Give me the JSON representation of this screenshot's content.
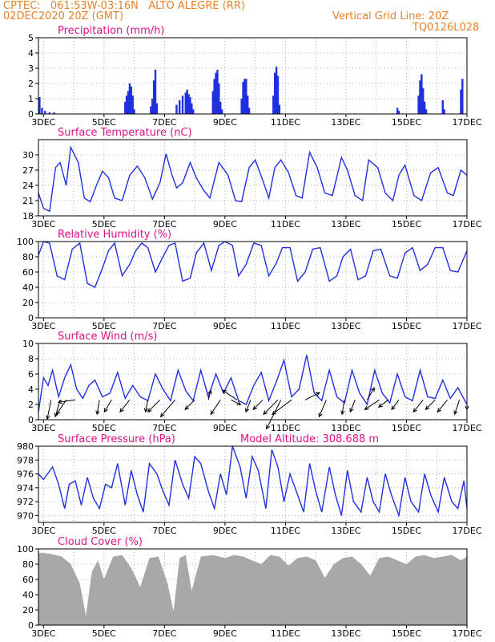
{
  "header": {
    "line1_left": "CPTEC:   061:53W-03:16N   ALTO ALEGRE (RR)",
    "line2_left": "02DEC2020 20Z (GMT)",
    "line1_right": "Vertical Grid Line: 20Z",
    "line2_right": "TQ0126L028"
  },
  "colors": {
    "header": "#e8822a",
    "title": "#e0108a",
    "series": "#2030e0",
    "cloud": "#a8a8a8",
    "arrow": "#000000"
  },
  "x_tick_labels": [
    "3DEC",
    "5DEC",
    "7DEC",
    "9DEC",
    "11DEC",
    "13DEC",
    "15DEC",
    "17DEC"
  ],
  "chart_data": [
    {
      "type": "bar",
      "title": "Precipitation (mm/h)",
      "ylim": [
        0,
        5
      ],
      "yticks": [
        0,
        1,
        2,
        3,
        4,
        5
      ],
      "x_range_days": [
        2.833,
        17.0
      ],
      "series": [
        {
          "x": [
            2.87,
            2.95,
            3.05,
            3.2,
            3.35,
            5.7,
            5.75,
            5.8,
            5.85,
            5.9,
            5.95,
            6.0,
            6.55,
            6.6,
            6.65,
            6.7,
            6.75,
            7.4,
            7.5,
            7.6,
            7.7,
            7.75,
            7.8,
            7.85,
            7.9,
            7.95,
            8.6,
            8.65,
            8.7,
            8.75,
            8.8,
            8.85,
            8.9,
            9.55,
            9.6,
            9.65,
            9.7,
            9.75,
            9.8,
            10.6,
            10.65,
            10.7,
            10.75,
            10.8,
            14.7,
            14.75,
            15.4,
            15.45,
            15.5,
            15.55,
            15.6,
            15.65,
            16.2,
            16.25,
            16.8,
            16.85
          ],
          "values": [
            1.1,
            0.4,
            0.2,
            0.1,
            0.1,
            0.8,
            1.2,
            1.5,
            2.0,
            1.8,
            1.2,
            0.3,
            0.5,
            1.0,
            2.2,
            2.9,
            0.7,
            0.6,
            0.9,
            1.2,
            1.4,
            1.6,
            1.3,
            1.1,
            0.7,
            0.3,
            1.5,
            2.3,
            2.7,
            2.9,
            2.0,
            0.8,
            0.3,
            1.0,
            2.1,
            2.3,
            2.3,
            1.2,
            0.4,
            1.2,
            2.7,
            3.1,
            2.5,
            0.6,
            0.4,
            0.2,
            1.2,
            2.2,
            2.6,
            1.7,
            0.8,
            0.3,
            0.9,
            0.3,
            1.6,
            2.3
          ]
        }
      ]
    },
    {
      "type": "line",
      "title": "Surface Temperature (nC)",
      "ylim": [
        18,
        33
      ],
      "yticks": [
        18,
        21,
        24,
        27,
        30
      ],
      "x_range_days": [
        2.833,
        17.0
      ],
      "series": [
        {
          "x": [
            2.833,
            3.0,
            3.2,
            3.4,
            3.55,
            3.75,
            3.9,
            4.15,
            4.35,
            4.55,
            4.75,
            4.95,
            5.15,
            5.35,
            5.6,
            5.85,
            6.1,
            6.35,
            6.6,
            6.85,
            7.05,
            7.25,
            7.4,
            7.6,
            7.85,
            8.05,
            8.3,
            8.5,
            8.8,
            9.1,
            9.35,
            9.55,
            9.8,
            10.0,
            10.25,
            10.45,
            10.65,
            10.85,
            11.1,
            11.35,
            11.55,
            11.8,
            12.05,
            12.3,
            12.55,
            12.85,
            13.05,
            13.3,
            13.55,
            13.75,
            14.05,
            14.3,
            14.55,
            14.75,
            14.95,
            15.25,
            15.5,
            15.8,
            16.05,
            16.35,
            16.55,
            16.8,
            17.0
          ],
          "values": [
            22.5,
            19.5,
            18.9,
            27.5,
            28.5,
            24.0,
            31.5,
            28.5,
            21.5,
            20.8,
            24.0,
            26.8,
            25.5,
            21.5,
            21.0,
            26.0,
            27.8,
            25.5,
            21.3,
            24.5,
            30.2,
            26.0,
            23.5,
            24.5,
            28.5,
            25.5,
            23.0,
            21.5,
            28.5,
            26.0,
            21.0,
            20.8,
            27.5,
            29.0,
            25.0,
            21.5,
            27.5,
            29.0,
            26.5,
            22.0,
            21.5,
            30.5,
            27.5,
            22.5,
            22.0,
            29.5,
            27.0,
            22.0,
            21.0,
            29.0,
            27.5,
            22.5,
            21.0,
            26.0,
            28.0,
            22.0,
            21.0,
            26.5,
            27.5,
            22.5,
            22.0,
            27.0,
            26.0
          ]
        }
      ]
    },
    {
      "type": "line",
      "title": "Relative Humidity (%)",
      "ylim": [
        0,
        100
      ],
      "yticks": [
        0,
        20,
        40,
        60,
        80,
        100
      ],
      "x_range_days": [
        2.833,
        17.0
      ],
      "series": [
        {
          "x": [
            2.833,
            3.0,
            3.2,
            3.45,
            3.7,
            3.95,
            4.2,
            4.45,
            4.7,
            4.95,
            5.15,
            5.35,
            5.6,
            5.85,
            6.05,
            6.25,
            6.45,
            6.7,
            6.95,
            7.15,
            7.35,
            7.6,
            7.85,
            8.05,
            8.3,
            8.55,
            8.8,
            9.0,
            9.25,
            9.45,
            9.7,
            9.95,
            10.2,
            10.45,
            10.7,
            10.9,
            11.15,
            11.4,
            11.65,
            11.9,
            12.15,
            12.45,
            12.7,
            12.9,
            13.15,
            13.4,
            13.65,
            13.9,
            14.15,
            14.45,
            14.7,
            14.95,
            15.2,
            15.45,
            15.7,
            15.95,
            16.2,
            16.45,
            16.7,
            17.0
          ],
          "values": [
            82,
            100,
            98,
            55,
            50,
            90,
            98,
            45,
            40,
            65,
            88,
            98,
            55,
            70,
            88,
            98,
            92,
            60,
            80,
            95,
            98,
            48,
            52,
            85,
            98,
            62,
            95,
            100,
            95,
            55,
            70,
            98,
            95,
            55,
            72,
            92,
            92,
            48,
            60,
            90,
            92,
            48,
            55,
            80,
            90,
            50,
            55,
            88,
            90,
            55,
            52,
            85,
            92,
            62,
            70,
            92,
            92,
            62,
            60,
            88
          ]
        }
      ]
    },
    {
      "type": "line",
      "title": "Surface Wind (m/s)",
      "ylim": [
        0,
        10
      ],
      "yticks": [
        0,
        2,
        4,
        6,
        8,
        10
      ],
      "x_range_days": [
        2.833,
        17.0
      ],
      "series": [
        {
          "x": [
            2.833,
            3.0,
            3.15,
            3.3,
            3.5,
            3.7,
            3.9,
            4.1,
            4.3,
            4.5,
            4.7,
            4.95,
            5.2,
            5.45,
            5.7,
            5.95,
            6.2,
            6.45,
            6.7,
            6.95,
            7.2,
            7.45,
            7.7,
            7.95,
            8.2,
            8.45,
            8.7,
            8.95,
            9.2,
            9.45,
            9.7,
            9.95,
            10.2,
            10.45,
            10.7,
            10.95,
            11.2,
            11.45,
            11.7,
            11.95,
            12.2,
            12.45,
            12.7,
            12.95,
            13.2,
            13.45,
            13.7,
            13.95,
            14.2,
            14.45,
            14.7,
            14.95,
            15.2,
            15.45,
            15.7,
            15.95,
            16.2,
            16.45,
            16.7,
            17.0
          ],
          "values": [
            1.0,
            5.5,
            4.5,
            6.5,
            3.0,
            5.5,
            7.2,
            4.0,
            2.8,
            4.5,
            5.2,
            3.0,
            3.5,
            6.2,
            2.8,
            4.5,
            3.0,
            2.5,
            6.0,
            4.0,
            2.5,
            6.5,
            3.8,
            2.5,
            6.5,
            3.0,
            6.0,
            3.5,
            5.5,
            2.5,
            2.0,
            4.5,
            6.2,
            2.5,
            5.0,
            7.8,
            3.0,
            4.0,
            8.5,
            3.5,
            2.5,
            6.5,
            3.0,
            2.2,
            6.5,
            3.5,
            2.0,
            6.5,
            3.5,
            2.2,
            6.0,
            3.0,
            2.5,
            6.5,
            3.0,
            2.8,
            5.2,
            2.8,
            4.2,
            2.0
          ]
        }
      ],
      "wind_vectors": [
        {
          "x": 3.25,
          "u": -0.8,
          "v": -4
        },
        {
          "x": 3.55,
          "u": -1.0,
          "v": -3.5
        },
        {
          "x": 3.75,
          "u": -2,
          "v": -3
        },
        {
          "x": 4.05,
          "u": -3.5,
          "v": -0.5
        },
        {
          "x": 4.85,
          "u": -0.5,
          "v": -3
        },
        {
          "x": 5.25,
          "u": -1.5,
          "v": -2.5
        },
        {
          "x": 5.85,
          "u": -2,
          "v": -2.5
        },
        {
          "x": 6.45,
          "u": -0.5,
          "v": -2.5
        },
        {
          "x": 6.85,
          "u": -2.5,
          "v": -2.5
        },
        {
          "x": 7.35,
          "u": -3,
          "v": -3.5
        },
        {
          "x": 8.0,
          "u": -2,
          "v": -2
        },
        {
          "x": 8.45,
          "u": 0.5,
          "v": 2
        },
        {
          "x": 8.85,
          "u": -2,
          "v": -3
        },
        {
          "x": 9.2,
          "u": 2,
          "v": -1
        },
        {
          "x": 9.4,
          "u": -3,
          "v": 2
        },
        {
          "x": 9.85,
          "u": -1,
          "v": -2.5
        },
        {
          "x": 10.25,
          "u": -2,
          "v": -2
        },
        {
          "x": 10.75,
          "u": -3,
          "v": -3
        },
        {
          "x": 10.85,
          "u": -3,
          "v": -6
        },
        {
          "x": 11.2,
          "u": -4,
          "v": -3
        },
        {
          "x": 11.65,
          "u": 3,
          "v": 1.5
        },
        {
          "x": 12.35,
          "u": -1.5,
          "v": -3.5
        },
        {
          "x": 12.95,
          "u": -0.5,
          "v": -3
        },
        {
          "x": 13.3,
          "u": -1,
          "v": -2.5
        },
        {
          "x": 13.7,
          "u": 1.5,
          "v": 2.5
        },
        {
          "x": 14.1,
          "u": -3,
          "v": -2
        },
        {
          "x": 14.4,
          "u": -2,
          "v": -1.5
        },
        {
          "x": 14.75,
          "u": -1.5,
          "v": -2
        },
        {
          "x": 15.55,
          "u": -2,
          "v": -2.5
        },
        {
          "x": 15.95,
          "u": -2,
          "v": -2
        },
        {
          "x": 16.35,
          "u": -2,
          "v": -2.5
        },
        {
          "x": 16.75,
          "u": -1,
          "v": -3
        },
        {
          "x": 17.0,
          "u": 0,
          "v": -2
        }
      ]
    },
    {
      "type": "line",
      "title": "Surface Pressure (hPa)",
      "annotation": "Model Altitude: 308.688 m",
      "ylim": [
        969,
        980
      ],
      "yticks": [
        970,
        972,
        974,
        976,
        978,
        980
      ],
      "x_range_days": [
        2.833,
        17.0
      ],
      "series": [
        {
          "x": [
            2.833,
            3.0,
            3.3,
            3.5,
            3.7,
            3.85,
            4.05,
            4.25,
            4.45,
            4.65,
            4.85,
            5.05,
            5.25,
            5.45,
            5.7,
            5.9,
            6.1,
            6.3,
            6.5,
            6.75,
            6.95,
            7.15,
            7.35,
            7.6,
            7.8,
            8.0,
            8.2,
            8.45,
            8.65,
            8.85,
            9.05,
            9.25,
            9.5,
            9.7,
            9.9,
            10.1,
            10.35,
            10.55,
            10.75,
            10.95,
            11.15,
            11.4,
            11.6,
            11.8,
            12.0,
            12.2,
            12.45,
            12.65,
            12.85,
            13.05,
            13.25,
            13.5,
            13.7,
            13.9,
            14.1,
            14.3,
            14.5,
            14.75,
            14.95,
            15.15,
            15.4,
            15.6,
            15.8,
            16.05,
            16.25,
            16.5,
            16.7,
            16.9,
            17.0
          ],
          "values": [
            976,
            975.2,
            977.0,
            974.5,
            971.0,
            974.5,
            975.0,
            971.5,
            975.5,
            972.5,
            971.0,
            974.5,
            974.0,
            977.5,
            971.5,
            976.5,
            973.0,
            970.5,
            977.5,
            976.0,
            973.5,
            971.5,
            978.0,
            974.5,
            972.5,
            978.5,
            977.5,
            973.5,
            971.0,
            976.0,
            973.0,
            980.0,
            977.0,
            972.5,
            978.5,
            976.5,
            971.0,
            979.5,
            977.0,
            972.0,
            976.0,
            973.0,
            970.5,
            977.5,
            973.5,
            970.5,
            977.0,
            973.0,
            970.0,
            976.5,
            972.0,
            970.5,
            975.5,
            972.0,
            970.5,
            976.0,
            973.0,
            970.0,
            975.5,
            972.0,
            970.5,
            976.0,
            973.0,
            970.5,
            975.5,
            972.0,
            971.0,
            975.0,
            971.0
          ]
        }
      ]
    },
    {
      "type": "area",
      "title": "Cloud Cover (%)",
      "ylim": [
        0,
        100
      ],
      "yticks": [
        0,
        20,
        40,
        60,
        80,
        100
      ],
      "x_range_days": [
        2.833,
        17.0
      ],
      "series": [
        {
          "x": [
            2.833,
            3.2,
            3.6,
            3.9,
            4.2,
            4.4,
            4.6,
            4.8,
            5.0,
            5.3,
            5.6,
            5.9,
            6.2,
            6.5,
            6.8,
            7.1,
            7.3,
            7.5,
            7.7,
            7.9,
            8.2,
            8.6,
            9.0,
            9.3,
            9.6,
            9.9,
            10.2,
            10.5,
            10.8,
            11.1,
            11.4,
            11.7,
            12.0,
            12.3,
            12.6,
            12.9,
            13.2,
            13.5,
            13.8,
            14.1,
            14.4,
            14.7,
            15.0,
            15.3,
            15.6,
            15.9,
            16.2,
            16.5,
            16.8,
            17.0
          ],
          "values": [
            95,
            94,
            90,
            80,
            55,
            12,
            70,
            85,
            60,
            90,
            92,
            75,
            50,
            88,
            90,
            55,
            18,
            88,
            92,
            45,
            90,
            92,
            88,
            92,
            90,
            85,
            80,
            92,
            90,
            78,
            88,
            90,
            85,
            62,
            80,
            88,
            90,
            80,
            65,
            88,
            90,
            85,
            80,
            90,
            92,
            88,
            90,
            92,
            85,
            90
          ]
        }
      ]
    }
  ]
}
